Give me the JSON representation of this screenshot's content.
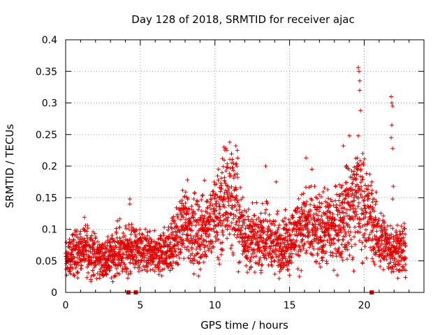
{
  "chart_data": {
    "type": "scatter",
    "title": "Day 128 of 2018, SRMTID for receiver ajac",
    "xlabel": "GPS time / hours",
    "ylabel": "SRMTID / TECUs",
    "xlim": [
      0,
      24
    ],
    "ylim": [
      0,
      0.4
    ],
    "xticks": [
      0,
      5,
      10,
      15,
      20
    ],
    "xtick_labels": [
      "0",
      "5",
      "10",
      "15",
      "20"
    ],
    "yticks": [
      0,
      0.05,
      0.1,
      0.15,
      0.2,
      0.25,
      0.3,
      0.35,
      0.4
    ],
    "ytick_labels": [
      "0",
      "0.05",
      "0.1",
      "0.15",
      "0.2",
      "0.25",
      "0.3",
      "0.35",
      "0.4"
    ],
    "grid": true,
    "marker": "plus",
    "color": "#e00000",
    "series": [
      {
        "name": "SRMTID",
        "approx_trend": [
          [
            0.0,
            0.05
          ],
          [
            0.5,
            0.06
          ],
          [
            1.0,
            0.065
          ],
          [
            1.5,
            0.07
          ],
          [
            2.0,
            0.06
          ],
          [
            2.5,
            0.05
          ],
          [
            3.0,
            0.055
          ],
          [
            3.5,
            0.07
          ],
          [
            4.0,
            0.065
          ],
          [
            4.5,
            0.07
          ],
          [
            5.0,
            0.065
          ],
          [
            5.5,
            0.06
          ],
          [
            6.0,
            0.06
          ],
          [
            6.5,
            0.065
          ],
          [
            7.0,
            0.07
          ],
          [
            7.5,
            0.09
          ],
          [
            8.0,
            0.11
          ],
          [
            8.5,
            0.1
          ],
          [
            9.0,
            0.09
          ],
          [
            9.5,
            0.11
          ],
          [
            10.0,
            0.12
          ],
          [
            10.5,
            0.13
          ],
          [
            11.0,
            0.16
          ],
          [
            11.5,
            0.13
          ],
          [
            12.0,
            0.09
          ],
          [
            12.5,
            0.085
          ],
          [
            13.0,
            0.085
          ],
          [
            13.5,
            0.09
          ],
          [
            14.0,
            0.08
          ],
          [
            14.5,
            0.075
          ],
          [
            15.0,
            0.08
          ],
          [
            15.5,
            0.1
          ],
          [
            16.0,
            0.11
          ],
          [
            16.5,
            0.1
          ],
          [
            17.0,
            0.095
          ],
          [
            17.5,
            0.1
          ],
          [
            18.0,
            0.1
          ],
          [
            18.5,
            0.12
          ],
          [
            19.0,
            0.13
          ],
          [
            19.5,
            0.15
          ],
          [
            20.0,
            0.14
          ],
          [
            20.5,
            0.11
          ],
          [
            21.0,
            0.085
          ],
          [
            21.5,
            0.075
          ],
          [
            22.0,
            0.07
          ],
          [
            22.5,
            0.07
          ],
          [
            22.8,
            0.065
          ]
        ],
        "spike_points": [
          [
            4.3,
            0.148
          ],
          [
            4.3,
            0.14
          ],
          [
            10.6,
            0.23
          ],
          [
            10.8,
            0.225
          ],
          [
            11.4,
            0.232
          ],
          [
            11.5,
            0.225
          ],
          [
            13.4,
            0.2
          ],
          [
            14.1,
            0.175
          ],
          [
            16.1,
            0.213
          ],
          [
            16.5,
            0.195
          ],
          [
            18.6,
            0.232
          ],
          [
            19.0,
            0.248
          ],
          [
            19.6,
            0.356
          ],
          [
            19.65,
            0.35
          ],
          [
            19.7,
            0.335
          ],
          [
            19.7,
            0.32
          ],
          [
            19.75,
            0.288
          ],
          [
            19.6,
            0.248
          ],
          [
            19.9,
            0.22
          ],
          [
            21.8,
            0.31
          ],
          [
            21.85,
            0.3
          ],
          [
            21.9,
            0.295
          ],
          [
            21.85,
            0.265
          ],
          [
            21.8,
            0.245
          ],
          [
            21.9,
            0.228
          ],
          [
            21.95,
            0.168
          ],
          [
            21.9,
            0.148
          ],
          [
            20.5,
            0.175
          ],
          [
            10.3,
            0.045
          ],
          [
            8.9,
            0.026
          ],
          [
            19.3,
            0.034
          ],
          [
            14.3,
            0.022
          ]
        ]
      }
    ],
    "gap_markers": [
      4.2,
      4.7,
      20.5
    ]
  }
}
